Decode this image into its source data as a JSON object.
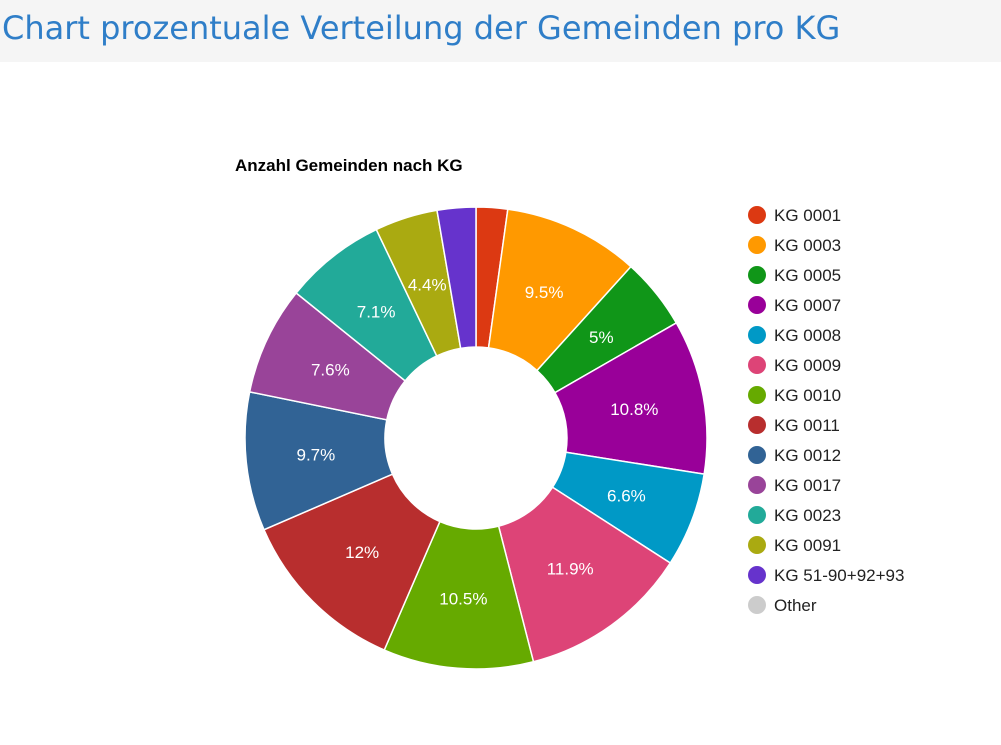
{
  "page": {
    "title": "Chart prozentuale Verteilung der Gemeinden pro KG"
  },
  "chart_data": {
    "type": "pie",
    "donut": true,
    "title": "Anzahl Gemeinden nach KG",
    "legend_position": "right",
    "series": [
      {
        "name": "KG 0001",
        "percent": 2.2,
        "label": "",
        "color": "#dc3912"
      },
      {
        "name": "KG 0003",
        "percent": 9.5,
        "label": "9.5%",
        "color": "#ff9900"
      },
      {
        "name": "KG 0005",
        "percent": 5.0,
        "label": "5%",
        "color": "#109618"
      },
      {
        "name": "KG 0007",
        "percent": 10.8,
        "label": "10.8%",
        "color": "#990099"
      },
      {
        "name": "KG 0008",
        "percent": 6.6,
        "label": "6.6%",
        "color": "#0099c6"
      },
      {
        "name": "KG 0009",
        "percent": 11.9,
        "label": "11.9%",
        "color": "#dd4477"
      },
      {
        "name": "KG 0010",
        "percent": 10.5,
        "label": "10.5%",
        "color": "#66aa00"
      },
      {
        "name": "KG 0011",
        "percent": 12.0,
        "label": "12%",
        "color": "#b82e2e"
      },
      {
        "name": "KG 0012",
        "percent": 9.7,
        "label": "9.7%",
        "color": "#316395"
      },
      {
        "name": "KG 0017",
        "percent": 7.6,
        "label": "7.6%",
        "color": "#994499"
      },
      {
        "name": "KG 0023",
        "percent": 7.1,
        "label": "7.1%",
        "color": "#22aa99"
      },
      {
        "name": "KG 0091",
        "percent": 4.4,
        "label": "4.4%",
        "color": "#aaaa11"
      },
      {
        "name": "KG 51-90+92+93",
        "percent": 2.7,
        "label": "",
        "color": "#6633cc"
      },
      {
        "name": "Other",
        "percent": 0,
        "label": "",
        "color": "#cccccc"
      }
    ]
  }
}
